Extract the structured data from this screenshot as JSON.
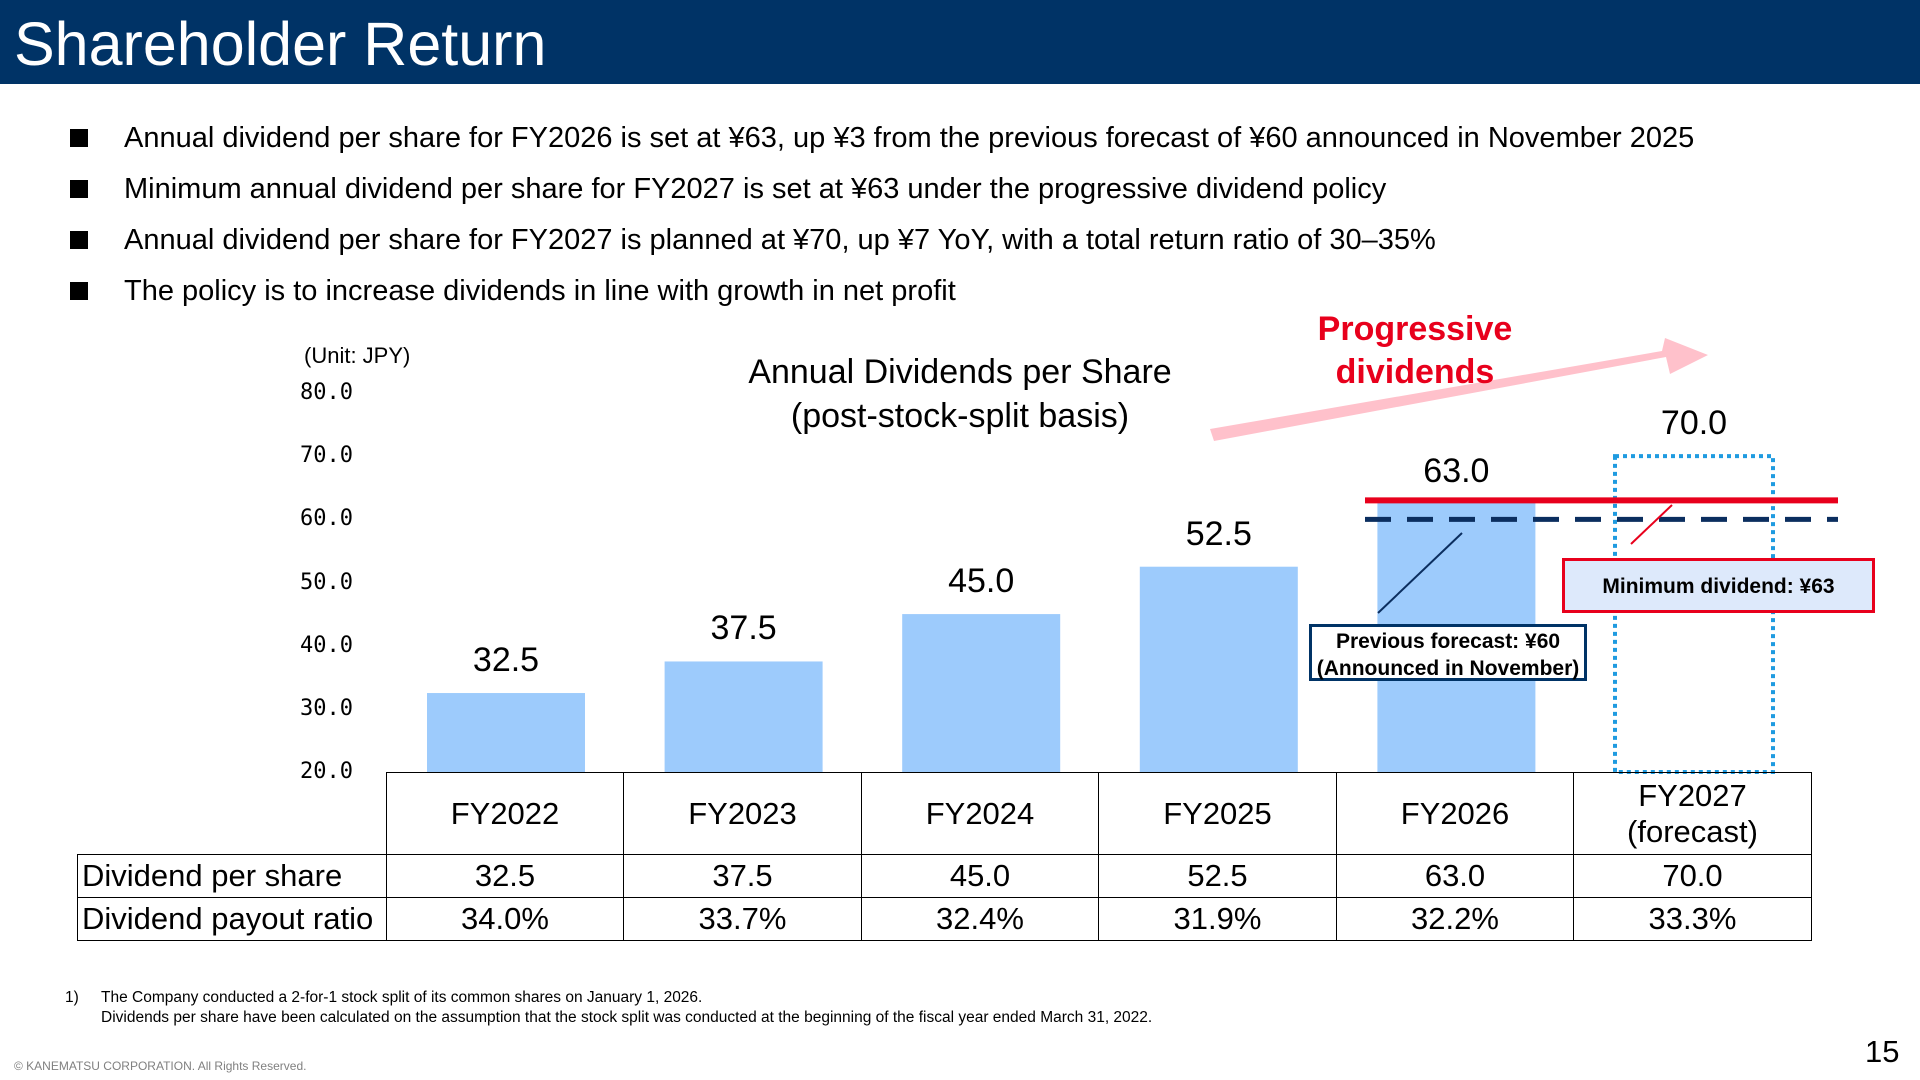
{
  "title": "Shareholder Return",
  "bullets": [
    "Annual dividend per share for FY2026 is set at ¥63, up ¥3 from the previous forecast of ¥60 announced in November 2025",
    "Minimum annual dividend per share for FY2027 is set at ¥63 under the progressive dividend policy",
    "Annual dividend per share for FY2027 is planned at ¥70, up ¥7 YoY, with a total return ratio of 30–35%",
    "The policy is to increase dividends in line with growth in net profit"
  ],
  "chart_data": {
    "type": "bar",
    "title_lines": [
      "Annual Dividends per Share",
      "(post-stock-split basis)"
    ],
    "unit_label": "(Unit: JPY)",
    "categories": [
      "FY2022",
      "FY2023",
      "FY2024",
      "FY2025",
      "FY2026",
      "FY2027 (forecast)"
    ],
    "values": [
      32.5,
      37.5,
      45.0,
      52.5,
      63.0,
      70.0
    ],
    "value_labels": [
      "32.5",
      "37.5",
      "45.0",
      "52.5",
      "63.0",
      "70.0"
    ],
    "forecast_index": 5,
    "ylim": [
      20,
      80
    ],
    "yticks": [
      "80.0",
      "70.0",
      "60.0",
      "50.0",
      "40.0",
      "30.0",
      "20.0"
    ],
    "reference_lines": [
      {
        "value": 63,
        "style": "solid",
        "color": "#e8001c"
      },
      {
        "value": 60,
        "style": "dashed",
        "color": "#0b2e5f"
      }
    ],
    "bar_color": "#9dcbfc",
    "forecast_border_color": "#1f9be0",
    "annotations": {
      "progressive": [
        "Progressive",
        "dividends"
      ],
      "previous_forecast": [
        "Previous forecast: ¥60",
        "(Announced in November)"
      ],
      "minimum_dividend": "Minimum dividend: ¥63"
    }
  },
  "table": {
    "header": [
      [
        "FY2022"
      ],
      [
        "FY2023"
      ],
      [
        "FY2024"
      ],
      [
        "FY2025"
      ],
      [
        "FY2026"
      ],
      [
        "FY2027",
        "(forecast)"
      ]
    ],
    "rows": [
      {
        "label": "Dividend per share",
        "values": [
          "32.5",
          "37.5",
          "45.0",
          "52.5",
          "63.0",
          "70.0"
        ]
      },
      {
        "label": "Dividend payout ratio",
        "values": [
          "34.0%",
          "33.7%",
          "32.4%",
          "31.9%",
          "32.2%",
          "33.3%"
        ]
      }
    ]
  },
  "footnote": {
    "number": "1)",
    "lines": [
      "The Company conducted a 2-for-1 stock split of its common shares on January 1, 2026.",
      "Dividends per share have been calculated on the assumption that the stock split was conducted at the beginning of the fiscal year ended March 31, 2022."
    ]
  },
  "copyright": "© KANEMATSU CORPORATION. All Rights Reserved.",
  "page_number": "15",
  "colors": {
    "title_bar": "#003366",
    "accent_red": "#e8001c",
    "arrow_pink": "#ffc1cb",
    "navy": "#0b2e5f"
  }
}
